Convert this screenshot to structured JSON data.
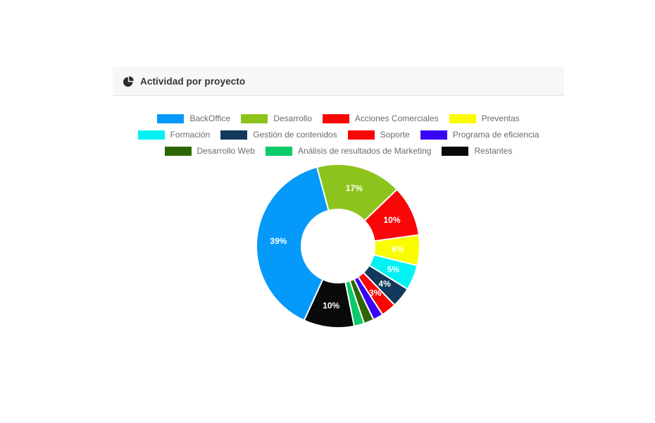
{
  "header": {
    "title": "Actividad por proyecto",
    "icon": "pie-chart-icon"
  },
  "chart_data": {
    "type": "pie",
    "subtype": "donut",
    "title": "Actividad por proyecto",
    "value_suffix": "%",
    "slices": [
      {
        "label": "BackOffice",
        "value": 39,
        "color": "#0599FA"
      },
      {
        "label": "Desarrollo",
        "value": 17,
        "color": "#8CC41D"
      },
      {
        "label": "Acciones Comerciales",
        "value": 10,
        "color": "#F90606"
      },
      {
        "label": "Preventas",
        "value": 6,
        "color": "#FCFC00"
      },
      {
        "label": "Formación",
        "value": 5,
        "color": "#00F2F2"
      },
      {
        "label": "Gestión de contenidos",
        "value": 4,
        "color": "#12395C"
      },
      {
        "label": "Soporte",
        "value": 3,
        "color": "#F90606"
      },
      {
        "label": "Programa de eficiencia",
        "value": 2,
        "color": "#3805F5"
      },
      {
        "label": "Desarrollo Web",
        "value": 2,
        "color": "#2F6604"
      },
      {
        "label": "Análisis de resultados de Marketing",
        "value": 2,
        "color": "#0ACB69"
      },
      {
        "label": "Restantes",
        "value": 10,
        "color": "#0A0A0A"
      }
    ],
    "visible_slice_labels": [
      "39%",
      "17%",
      "10%",
      "6%",
      "5%",
      "4%",
      "3%",
      "10%"
    ],
    "min_value_for_label": 3,
    "start_angle_deg": -15,
    "clockwise_order": [
      1,
      2,
      3,
      4,
      5,
      6,
      7,
      8,
      9,
      10,
      0
    ],
    "inner_radius_ratio": 0.45,
    "legend_position": "top",
    "legend_rows": [
      [
        0,
        1,
        2,
        3
      ],
      [
        4,
        5,
        6,
        7
      ],
      [
        8,
        9,
        10
      ]
    ]
  }
}
